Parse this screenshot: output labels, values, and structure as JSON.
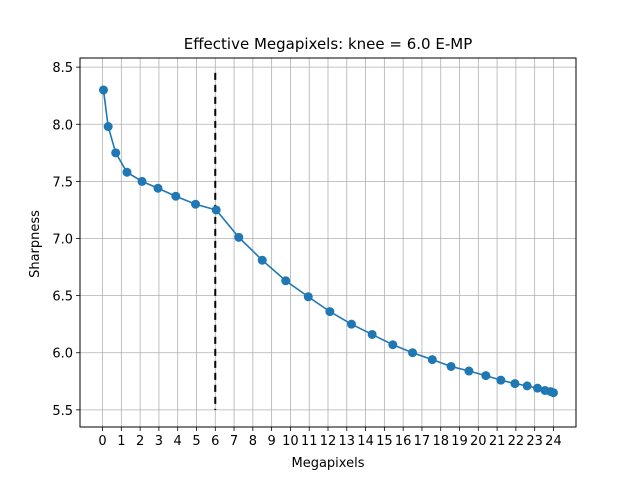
{
  "chart_data": {
    "type": "line",
    "title": "Effective Megapixels: knee = 6.0 E-MP",
    "xlabel": "Megapixels",
    "ylabel": "Sharpness",
    "xlim": [
      -1.2,
      25.2
    ],
    "ylim": [
      5.35,
      8.58
    ],
    "x_ticks": [
      0,
      1,
      2,
      3,
      4,
      5,
      6,
      7,
      8,
      9,
      10,
      11,
      12,
      13,
      14,
      15,
      16,
      17,
      18,
      19,
      20,
      21,
      22,
      23,
      24
    ],
    "y_ticks": [
      5.5,
      6.0,
      6.5,
      7.0,
      7.5,
      8.0,
      8.5
    ],
    "y_tick_labels": [
      "5.5",
      "6.0",
      "6.5",
      "7.0",
      "7.5",
      "8.0",
      "8.5"
    ],
    "grid": true,
    "series": [
      {
        "color": "#1f77b4",
        "x": [
          0.05,
          0.3,
          0.7,
          1.3,
          2.1,
          2.95,
          3.9,
          4.95,
          6.05,
          7.25,
          8.5,
          9.75,
          10.95,
          12.1,
          13.25,
          14.35,
          15.45,
          16.5,
          17.55,
          18.55,
          19.5,
          20.4,
          21.2,
          21.95,
          22.6,
          23.15,
          23.55,
          23.85,
          24.0
        ],
        "y": [
          8.3,
          7.98,
          7.75,
          7.58,
          7.5,
          7.44,
          7.37,
          7.3,
          7.25,
          7.01,
          6.81,
          6.63,
          6.49,
          6.36,
          6.25,
          6.16,
          6.07,
          6.0,
          5.94,
          5.88,
          5.84,
          5.8,
          5.76,
          5.73,
          5.71,
          5.69,
          5.67,
          5.66,
          5.65
        ]
      }
    ],
    "knee": {
      "x": 6.0,
      "y_range": [
        5.5,
        8.45
      ],
      "color": "#000000",
      "style": "dashed"
    }
  }
}
